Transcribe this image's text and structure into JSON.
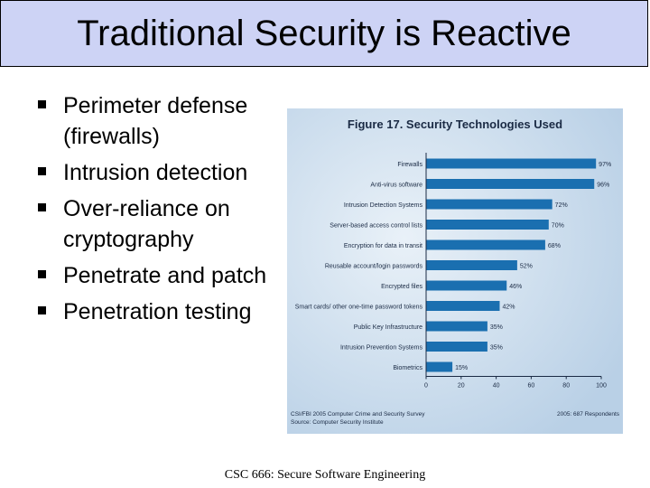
{
  "slide": {
    "title": "Traditional Security is Reactive",
    "bullets": [
      "Perimeter defense (firewalls)",
      "Intrusion detection",
      "Over-reliance on cryptography",
      "Penetrate and patch",
      "Penetration testing"
    ],
    "footer": "CSC 666: Secure Software Engineering"
  },
  "colors": {
    "title_background": "#cdd3f5",
    "figure_background": "#b9d0e6",
    "bar_color": "#1a6fb0"
  },
  "chart_data": {
    "type": "bar",
    "orientation": "horizontal",
    "title": "Figure 17. Security Technologies Used",
    "categories": [
      "Firewalls",
      "Anti-virus software",
      "Intrusion Detection Systems",
      "Server-based access control lists",
      "Encryption for data in transit",
      "Reusable account/login passwords",
      "Encrypted files",
      "Smart cards/ other one-time password tokens",
      "Public Key Infrastructure",
      "Intrusion Prevention Systems",
      "Biometrics"
    ],
    "values": [
      97,
      96,
      72,
      70,
      68,
      52,
      46,
      42,
      35,
      35,
      15
    ],
    "value_labels": [
      "97%",
      "96%",
      "72%",
      "70%",
      "68%",
      "52%",
      "46%",
      "42%",
      "35%",
      "35%",
      "15%"
    ],
    "xlim": [
      0,
      100
    ],
    "xticks": [
      0,
      20,
      40,
      60,
      80,
      100
    ],
    "grid": false,
    "source_left": "CSI/FBI 2005 Computer Crime and Security Survey\nSource: Computer Security Institute",
    "source_right": "2005: 687 Respondents"
  }
}
